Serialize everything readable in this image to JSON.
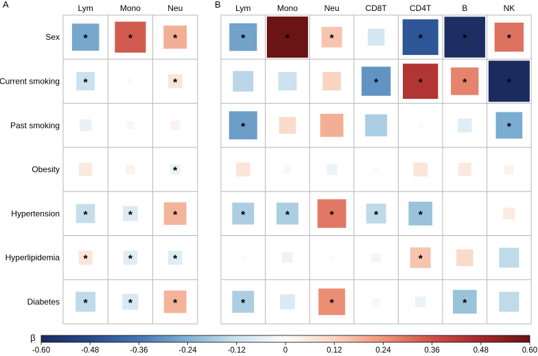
{
  "chart_data": {
    "type": "heatmap",
    "rows": [
      "Sex",
      "Current smoking",
      "Past smoking",
      "Obesity",
      "Hypertension",
      "Hyperlipidemia",
      "Diabetes"
    ],
    "significance_marker": "*",
    "panels": [
      {
        "label": "A",
        "columns": [
          "Lym",
          "Mono",
          "Neu"
        ],
        "values": [
          [
            -0.26,
            0.34,
            0.19
          ],
          [
            -0.12,
            0.01,
            0.07
          ],
          [
            -0.05,
            0.02,
            0.03
          ],
          [
            0.06,
            0.03,
            -0.04
          ],
          [
            -0.13,
            -0.08,
            0.18
          ],
          [
            0.07,
            -0.07,
            -0.07
          ],
          [
            -0.14,
            -0.09,
            0.18
          ]
        ],
        "significant": [
          [
            true,
            true,
            true
          ],
          [
            true,
            false,
            true
          ],
          [
            false,
            false,
            false
          ],
          [
            false,
            false,
            true
          ],
          [
            true,
            true,
            true
          ],
          [
            true,
            true,
            true
          ],
          [
            true,
            true,
            true
          ]
        ]
      },
      {
        "label": "B",
        "columns": [
          "Lym",
          "Mono",
          "Neu",
          "CD8T",
          "CD4T",
          "B",
          "NK"
        ],
        "values": [
          [
            -0.27,
            0.6,
            0.15,
            -0.1,
            -0.45,
            -0.59,
            0.3
          ],
          [
            -0.15,
            -0.12,
            0.12,
            -0.3,
            0.44,
            0.27,
            -0.6
          ],
          [
            -0.28,
            0.1,
            0.19,
            -0.17,
            -0.01,
            -0.07,
            -0.25
          ],
          [
            0.07,
            0.02,
            -0.04,
            0.01,
            0.07,
            0.06,
            0.03
          ],
          [
            -0.17,
            -0.17,
            0.29,
            -0.14,
            -0.2,
            0.0,
            0.05
          ],
          [
            0.01,
            -0.04,
            0.01,
            -0.03,
            0.15,
            0.1,
            -0.14
          ],
          [
            -0.17,
            -0.08,
            0.25,
            0.02,
            -0.04,
            -0.2,
            -0.14
          ]
        ],
        "significant": [
          [
            true,
            true,
            true,
            false,
            true,
            true,
            true
          ],
          [
            false,
            false,
            false,
            true,
            true,
            true,
            true
          ],
          [
            true,
            false,
            false,
            false,
            false,
            false,
            true
          ],
          [
            false,
            false,
            false,
            false,
            false,
            false,
            false
          ],
          [
            true,
            true,
            true,
            true,
            true,
            false,
            false
          ],
          [
            false,
            false,
            false,
            false,
            true,
            false,
            false
          ],
          [
            true,
            false,
            true,
            false,
            false,
            true,
            false
          ]
        ]
      }
    ],
    "colorbar": {
      "label": "β",
      "range": [
        -0.6,
        0.6
      ],
      "ticks": [
        "-0.60",
        "-0.48",
        "-0.36",
        "-0.24",
        "-0.12",
        "0",
        "0.12",
        "0.24",
        "0.36",
        "0.48",
        "0.60"
      ]
    },
    "colors": {
      "negative_end": "#1b2b5e",
      "positive_end": "#6a1414",
      "midpoint": "#ffffff",
      "grid": "#b5b5b5"
    }
  }
}
